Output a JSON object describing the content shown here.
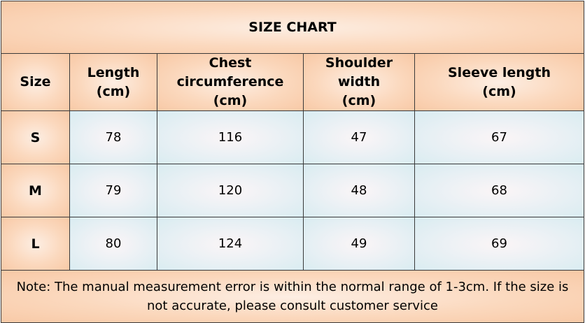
{
  "title": "SIZE CHART",
  "headers": [
    {
      "line1": "Size",
      "line2": ""
    },
    {
      "line1": "Length",
      "line2": "(cm)"
    },
    {
      "line1": "Chest circumference",
      "line2": "(cm)"
    },
    {
      "line1": "Shoulder width",
      "line2": "(cm)"
    },
    {
      "line1": "Sleeve length",
      "line2": "(cm)"
    }
  ],
  "rows": [
    {
      "size": "S",
      "values": [
        "78",
        "116",
        "47",
        "67"
      ]
    },
    {
      "size": "M",
      "values": [
        "79",
        "120",
        "48",
        "68"
      ]
    },
    {
      "size": "L",
      "values": [
        "80",
        "124",
        "49",
        "69"
      ]
    }
  ],
  "note": "Note: The manual measurement error is within the normal range of 1-3cm. If the size is not accurate, please consult customer service",
  "colors": {
    "header_fill": "#f8c9a6",
    "data_fill": "#d9ecf1",
    "border": "#3a3a3a"
  }
}
